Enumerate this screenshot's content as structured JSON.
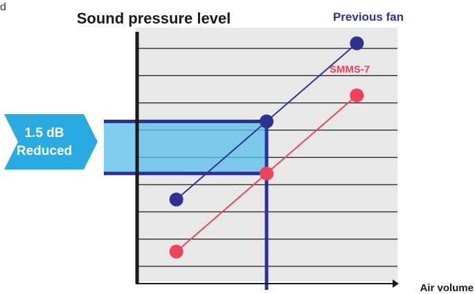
{
  "chart_data": {
    "type": "line",
    "title": "Sound pressure level",
    "xlabel": "Air volume",
    "ylabel": "",
    "grid": true,
    "series": [
      {
        "name": "Previous fan",
        "color": "#2e3192",
        "x": [
          0.0,
          1.0,
          2.0
        ],
        "y": [
          3.0,
          6.0,
          9.0
        ]
      },
      {
        "name": "SMMS-7",
        "color": "#f0435a",
        "x": [
          0.0,
          1.0,
          2.0
        ],
        "y": [
          1.0,
          4.0,
          7.0
        ]
      }
    ],
    "reference": {
      "x": 1.0
    },
    "band": {
      "label_line1": "1.5 dB",
      "label_line2": "Reduced"
    },
    "xlim": [
      -0.45,
      2.45
    ],
    "ylim": [
      -0.15,
      9.6
    ]
  },
  "corner_glyph": "d",
  "colors": {
    "plot_bg": "#e8e8e9",
    "grid": "#1a1a1a",
    "axis": "#1a1a1a",
    "band_fill": "#5bc0eb",
    "band_edge": "#2e3192",
    "arrow": "#29abe2",
    "arrow_text": "#ffffff"
  }
}
